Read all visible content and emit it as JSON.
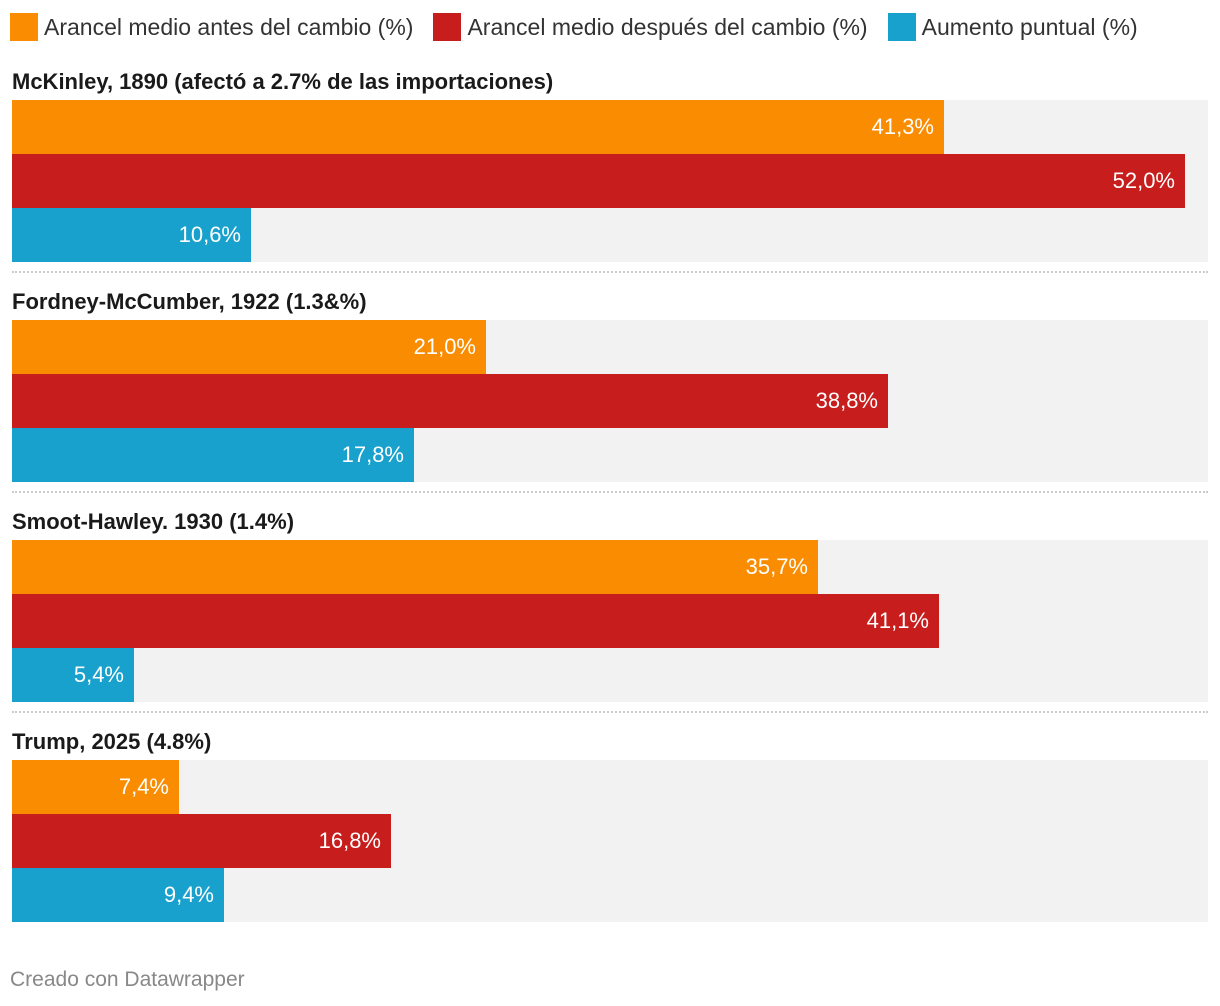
{
  "legend": [
    {
      "label": "Arancel medio antes del cambio (%)",
      "color": "#f98c00"
    },
    {
      "label": "Arancel medio después del cambio (%)",
      "color": "#c71e1d"
    },
    {
      "label": "Aumento puntual (%)",
      "color": "#18a1cd"
    }
  ],
  "chart_data": {
    "type": "bar",
    "orientation": "horizontal",
    "grouped": true,
    "x_max": 53,
    "groups": [
      {
        "title": "McKinley, 1890 (afectó a 2.7% de las importaciones)",
        "bars": [
          {
            "series": "Arancel medio antes del cambio (%)",
            "value": 41.3,
            "label": "41,3%"
          },
          {
            "series": "Arancel medio después del cambio (%)",
            "value": 52.0,
            "label": "52,0%"
          },
          {
            "series": "Aumento puntual (%)",
            "value": 10.6,
            "label": "10,6%"
          }
        ]
      },
      {
        "title": "Fordney-McCumber, 1922 (1.3&%)",
        "bars": [
          {
            "series": "Arancel medio antes del cambio (%)",
            "value": 21.0,
            "label": "21,0%"
          },
          {
            "series": "Arancel medio después del cambio (%)",
            "value": 38.8,
            "label": "38,8%"
          },
          {
            "series": "Aumento puntual (%)",
            "value": 17.8,
            "label": "17,8%"
          }
        ]
      },
      {
        "title": "Smoot-Hawley. 1930 (1.4%)",
        "bars": [
          {
            "series": "Arancel medio antes del cambio (%)",
            "value": 35.7,
            "label": "35,7%"
          },
          {
            "series": "Arancel medio después del cambio (%)",
            "value": 41.1,
            "label": "41,1%"
          },
          {
            "series": "Aumento puntual (%)",
            "value": 5.4,
            "label": "5,4%"
          }
        ]
      },
      {
        "title": "Trump, 2025 (4.8%)",
        "bars": [
          {
            "series": "Arancel medio antes del cambio (%)",
            "value": 7.4,
            "label": "7,4%"
          },
          {
            "series": "Arancel medio después del cambio (%)",
            "value": 16.8,
            "label": "16,8%"
          },
          {
            "series": "Aumento puntual (%)",
            "value": 9.4,
            "label": "9,4%"
          }
        ]
      }
    ]
  },
  "footer": {
    "credit": "Creado con Datawrapper"
  }
}
